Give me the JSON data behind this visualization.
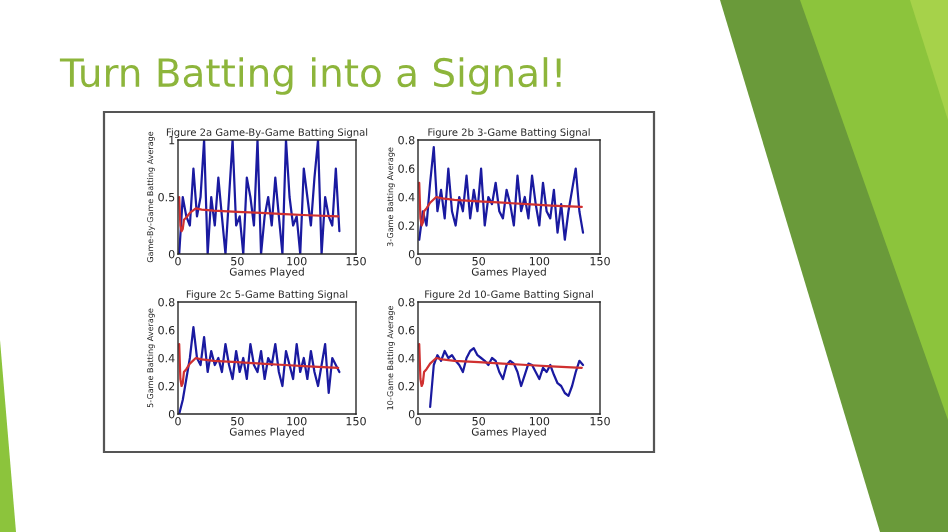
{
  "chart_data": [
    {
      "type": "line",
      "title": "Figure 2a Game-By-Game Batting Signal",
      "xlabel": "Games Played",
      "ylabel": "Game-By-Game Batting Average",
      "annotations": [
        "Turn Batting into a Signal!"
      ],
      "xlim": [
        0,
        150
      ],
      "xticks": [
        0,
        50,
        100,
        150
      ],
      "ylim": [
        0,
        1
      ],
      "yticks": [
        0,
        0.5,
        1
      ],
      "grid": false,
      "legend": false,
      "x": [
        1,
        4,
        7,
        10,
        13,
        16,
        19,
        22,
        25,
        28,
        31,
        34,
        37,
        40,
        43,
        46,
        49,
        52,
        55,
        58,
        61,
        64,
        67,
        70,
        73,
        76,
        79,
        82,
        85,
        88,
        91,
        94,
        97,
        100,
        103,
        106,
        109,
        112,
        115,
        118,
        121,
        124,
        127,
        130,
        133,
        136
      ],
      "series": [
        {
          "color": "#1a1aa0",
          "values": [
            0,
            0.5,
            0.33,
            0.25,
            0.75,
            0.33,
            0.5,
            1,
            0,
            0.5,
            0.25,
            0.67,
            0.33,
            0,
            0.5,
            1,
            0.25,
            0.33,
            0,
            0.67,
            0.5,
            0.25,
            1,
            0,
            0.33,
            0.5,
            0.25,
            0.67,
            0.33,
            0,
            1,
            0.5,
            0.25,
            0.33,
            0,
            0.75,
            0.5,
            0.25,
            0.67,
            1,
            0,
            0.5,
            0.33,
            0.25,
            0.75,
            0.2
          ]
        },
        {
          "color": "#d03030",
          "x": [
            1,
            2,
            3,
            4,
            5,
            7,
            10,
            15,
            20,
            30,
            50,
            70,
            90,
            110,
            135
          ],
          "values": [
            0.5,
            0.25,
            0.2,
            0.22,
            0.3,
            0.32,
            0.36,
            0.4,
            0.39,
            0.38,
            0.37,
            0.36,
            0.35,
            0.34,
            0.33
          ]
        }
      ]
    },
    {
      "type": "line",
      "title": "Figure 2b 3-Game Batting Signal",
      "xlabel": "Games Played",
      "ylabel": "3-Game Batting Average",
      "xlim": [
        0,
        150
      ],
      "xticks": [
        0,
        50,
        100,
        150
      ],
      "ylim": [
        0,
        0.8
      ],
      "yticks": [
        0,
        0.2,
        0.4,
        0.6,
        0.8
      ],
      "grid": false,
      "legend": false,
      "x": [
        1,
        4,
        7,
        10,
        13,
        16,
        19,
        22,
        25,
        28,
        31,
        34,
        37,
        40,
        43,
        46,
        49,
        52,
        55,
        58,
        61,
        64,
        67,
        70,
        73,
        76,
        79,
        82,
        85,
        88,
        91,
        94,
        97,
        100,
        103,
        106,
        109,
        112,
        115,
        118,
        121,
        124,
        127,
        130,
        133,
        136
      ],
      "series": [
        {
          "color": "#1a1aa0",
          "values": [
            0.1,
            0.3,
            0.2,
            0.5,
            0.75,
            0.3,
            0.45,
            0.25,
            0.6,
            0.3,
            0.2,
            0.4,
            0.3,
            0.55,
            0.25,
            0.45,
            0.3,
            0.6,
            0.2,
            0.4,
            0.35,
            0.5,
            0.3,
            0.25,
            0.45,
            0.35,
            0.2,
            0.55,
            0.3,
            0.4,
            0.25,
            0.55,
            0.35,
            0.2,
            0.5,
            0.3,
            0.25,
            0.45,
            0.15,
            0.35,
            0.1,
            0.3,
            0.45,
            0.6,
            0.3,
            0.15
          ]
        },
        {
          "color": "#d03030",
          "x": [
            1,
            2,
            3,
            4,
            5,
            7,
            10,
            15,
            20,
            30,
            50,
            70,
            90,
            110,
            135
          ],
          "values": [
            0.5,
            0.25,
            0.2,
            0.22,
            0.3,
            0.32,
            0.36,
            0.4,
            0.39,
            0.38,
            0.37,
            0.36,
            0.35,
            0.34,
            0.33
          ]
        }
      ]
    },
    {
      "type": "line",
      "title": "Figure 2c 5-Game Batting Signal",
      "xlabel": "Games Played",
      "ylabel": "5-Game Batting Average",
      "xlim": [
        0,
        150
      ],
      "xticks": [
        0,
        50,
        100,
        150
      ],
      "ylim": [
        0,
        0.8
      ],
      "yticks": [
        0,
        0.2,
        0.4,
        0.6,
        0.8
      ],
      "grid": false,
      "legend": false,
      "x": [
        1,
        4,
        7,
        10,
        13,
        16,
        19,
        22,
        25,
        28,
        31,
        34,
        37,
        40,
        43,
        46,
        49,
        52,
        55,
        58,
        61,
        64,
        67,
        70,
        73,
        76,
        79,
        82,
        85,
        88,
        91,
        94,
        97,
        100,
        103,
        106,
        109,
        112,
        115,
        118,
        121,
        124,
        127,
        130,
        133,
        136
      ],
      "series": [
        {
          "color": "#1a1aa0",
          "values": [
            0,
            0.1,
            0.25,
            0.4,
            0.62,
            0.4,
            0.35,
            0.55,
            0.3,
            0.45,
            0.35,
            0.4,
            0.3,
            0.5,
            0.35,
            0.25,
            0.45,
            0.3,
            0.4,
            0.25,
            0.5,
            0.35,
            0.3,
            0.45,
            0.25,
            0.4,
            0.35,
            0.5,
            0.3,
            0.2,
            0.45,
            0.35,
            0.25,
            0.5,
            0.3,
            0.4,
            0.25,
            0.45,
            0.3,
            0.2,
            0.35,
            0.5,
            0.15,
            0.4,
            0.35,
            0.3
          ]
        },
        {
          "color": "#d03030",
          "x": [
            1,
            2,
            3,
            4,
            5,
            7,
            10,
            15,
            20,
            30,
            50,
            70,
            90,
            110,
            135
          ],
          "values": [
            0.5,
            0.25,
            0.2,
            0.22,
            0.3,
            0.32,
            0.36,
            0.4,
            0.39,
            0.38,
            0.37,
            0.36,
            0.35,
            0.34,
            0.33
          ]
        }
      ]
    },
    {
      "type": "line",
      "title": "Figure 2d 10-Game Batting Signal",
      "xlabel": "Games Played",
      "ylabel": "10-Game Batting Average",
      "xlim": [
        0,
        150
      ],
      "xticks": [
        0,
        50,
        100,
        150
      ],
      "ylim": [
        0,
        0.8
      ],
      "yticks": [
        0,
        0.2,
        0.4,
        0.6,
        0.8
      ],
      "grid": false,
      "legend": false,
      "x": [
        10,
        13,
        16,
        19,
        22,
        25,
        28,
        31,
        34,
        37,
        40,
        43,
        46,
        49,
        52,
        55,
        58,
        61,
        64,
        67,
        70,
        73,
        76,
        79,
        82,
        85,
        88,
        91,
        94,
        97,
        100,
        103,
        106,
        109,
        112,
        115,
        118,
        121,
        124,
        127,
        130,
        133,
        136
      ],
      "series": [
        {
          "color": "#1a1aa0",
          "values": [
            0.05,
            0.35,
            0.42,
            0.38,
            0.45,
            0.4,
            0.42,
            0.38,
            0.35,
            0.3,
            0.4,
            0.45,
            0.47,
            0.42,
            0.4,
            0.38,
            0.35,
            0.4,
            0.38,
            0.3,
            0.25,
            0.35,
            0.38,
            0.36,
            0.3,
            0.2,
            0.28,
            0.36,
            0.35,
            0.3,
            0.25,
            0.33,
            0.3,
            0.35,
            0.28,
            0.22,
            0.2,
            0.15,
            0.13,
            0.2,
            0.3,
            0.38,
            0.35
          ]
        },
        {
          "color": "#d03030",
          "x": [
            1,
            2,
            3,
            4,
            5,
            7,
            10,
            15,
            20,
            30,
            50,
            70,
            90,
            110,
            135
          ],
          "values": [
            0.5,
            0.25,
            0.2,
            0.22,
            0.3,
            0.32,
            0.36,
            0.4,
            0.39,
            0.38,
            0.37,
            0.36,
            0.35,
            0.34,
            0.33
          ]
        }
      ]
    }
  ]
}
